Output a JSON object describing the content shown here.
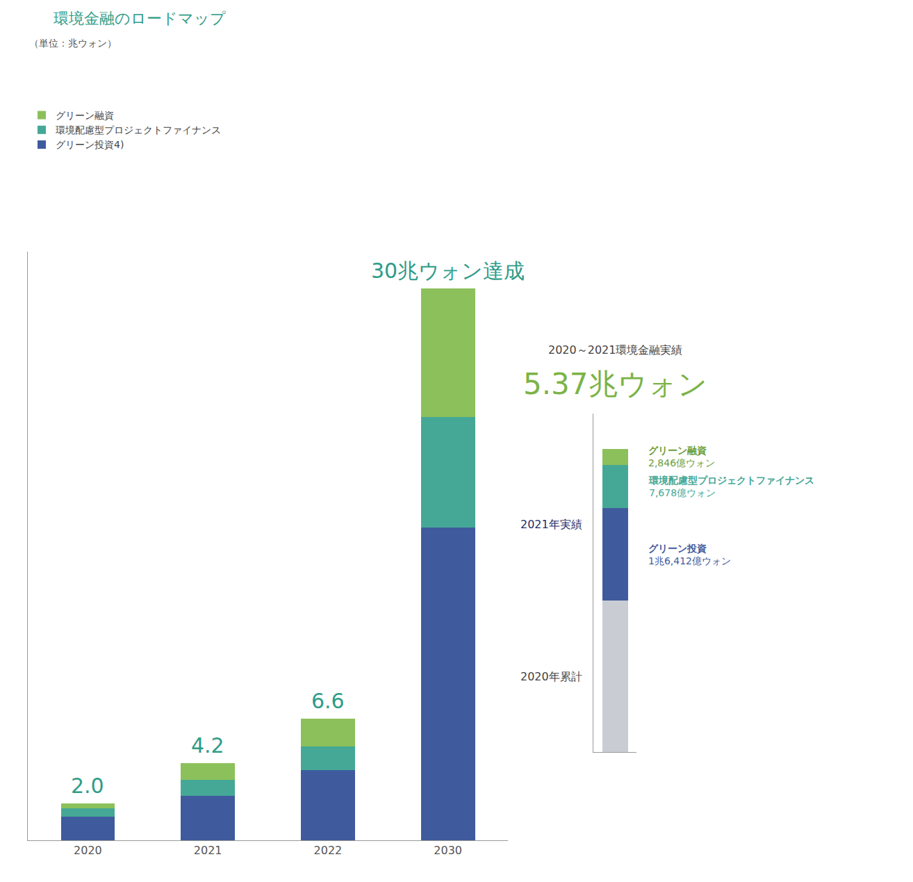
{
  "chart_data": [
    {
      "type": "bar",
      "title": "環境金融のロードマップ",
      "subtitle": "（単位：兆ウォン）",
      "categories": [
        "2020",
        "2021",
        "2022",
        "2030"
      ],
      "stacked": true,
      "series": [
        {
          "name": "グリーン投資4)",
          "color": "#3f5b9e",
          "values": [
            1.3,
            2.4,
            3.8,
            17
          ]
        },
        {
          "name": "環境配慮型プロジェクトファイナンス",
          "color": "#45a896",
          "values": [
            0.45,
            0.9,
            1.3,
            6
          ]
        },
        {
          "name": "グリーン融資",
          "color": "#8cc05a",
          "values": [
            0.25,
            0.9,
            1.5,
            7
          ]
        }
      ],
      "annotations": [
        {
          "category": "2020",
          "text": "2.0"
        },
        {
          "category": "2021",
          "text": "4.2"
        },
        {
          "category": "2022",
          "text": "6.6"
        },
        {
          "category": "2030",
          "text": "30兆ウォン達成"
        }
      ],
      "ylim": [
        0,
        32
      ],
      "yticks": [],
      "tick_labels": "x",
      "grid": false,
      "legend": "top left"
    },
    {
      "type": "bar",
      "title": "2020～2021環境金融実績",
      "subtitle": "5.37兆ウォン",
      "categories": [
        null
      ],
      "stacked": true,
      "series": [
        {
          "name": "2020年累計",
          "color": "#c9cdd3",
          "values": [
            2.68
          ]
        },
        {
          "name": "グリーン投資",
          "color": "#3f5b9e",
          "values": [
            1.6412
          ],
          "value_labels": [
            "1兆6,412億ウォン"
          ]
        },
        {
          "name": "環境配慮型プロジェクトファイナンス",
          "color": "#45a896",
          "values": [
            0.7678
          ],
          "value_labels": [
            "7,678億ウォン"
          ]
        },
        {
          "name": "グリーン融資",
          "color": "#8cc05a",
          "values": [
            0.2846
          ],
          "value_labels": [
            "2,846億ウォン"
          ]
        }
      ],
      "group_label": "2021年実績",
      "ylim": [
        0,
        6
      ],
      "yticks": [],
      "tick_labels": false
    }
  ]
}
